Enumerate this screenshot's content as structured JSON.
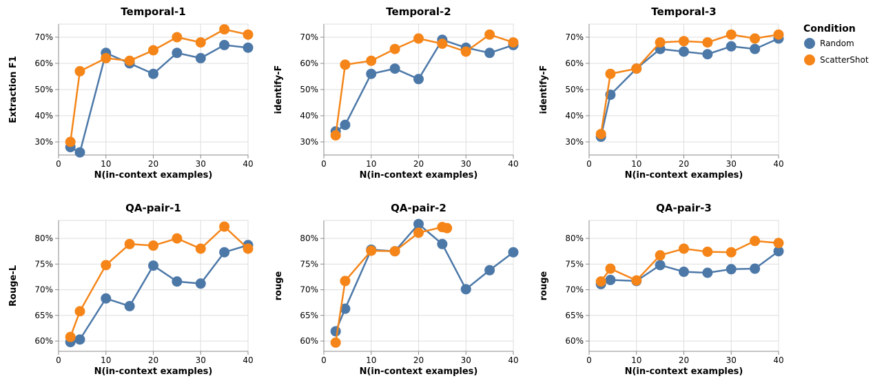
{
  "legend": {
    "title": "Condition",
    "items": [
      {
        "label": "Random",
        "color": "#4c78a8"
      },
      {
        "label": "ScatterShot",
        "color": "#f58518"
      }
    ]
  },
  "chart_data": [
    {
      "type": "line",
      "title": "Temporal-1",
      "xlabel": "N(in-context examples)",
      "ylabel": "Extraction F1",
      "xlim": [
        0,
        40
      ],
      "ylim": [
        0.25,
        0.75
      ],
      "xticks": [
        "0",
        "10",
        "20",
        "30",
        "40"
      ],
      "yticks": [
        "30%",
        "40%",
        "50%",
        "60%",
        "70%"
      ],
      "series": [
        {
          "name": "Random",
          "x": [
            2.5,
            4.5,
            10,
            15,
            20,
            25,
            30,
            35,
            40
          ],
          "y": [
            0.28,
            0.26,
            0.64,
            0.6,
            0.56,
            0.64,
            0.62,
            0.67,
            0.66
          ]
        },
        {
          "name": "ScatterShot",
          "x": [
            2.5,
            4.5,
            10,
            15,
            20,
            25,
            30,
            35,
            40
          ],
          "y": [
            0.3,
            0.57,
            0.62,
            0.61,
            0.65,
            0.7,
            0.68,
            0.73,
            0.71
          ]
        }
      ]
    },
    {
      "type": "line",
      "title": "Temporal-2",
      "xlabel": "N(in-context examples)",
      "ylabel": "identify-F",
      "xlim": [
        0,
        40
      ],
      "ylim": [
        0.25,
        0.75
      ],
      "xticks": [
        "0",
        "10",
        "20",
        "30",
        "40"
      ],
      "yticks": [
        "30%",
        "40%",
        "50%",
        "60%",
        "70%"
      ],
      "series": [
        {
          "name": "Random",
          "x": [
            2.5,
            4.5,
            10,
            15,
            20,
            25,
            30,
            35,
            40
          ],
          "y": [
            0.34,
            0.365,
            0.56,
            0.58,
            0.54,
            0.69,
            0.66,
            0.64,
            0.67
          ]
        },
        {
          "name": "ScatterShot",
          "x": [
            2.5,
            4.5,
            10,
            15,
            20,
            25,
            30,
            35,
            40
          ],
          "y": [
            0.325,
            0.595,
            0.61,
            0.655,
            0.695,
            0.675,
            0.645,
            0.71,
            0.68
          ]
        }
      ]
    },
    {
      "type": "line",
      "title": "Temporal-3",
      "xlabel": "N(in-context examples)",
      "ylabel": "identify-F",
      "xlim": [
        0,
        40
      ],
      "ylim": [
        0.25,
        0.75
      ],
      "xticks": [
        "0",
        "10",
        "20",
        "30",
        "40"
      ],
      "yticks": [
        "30%",
        "40%",
        "50%",
        "60%",
        "70%"
      ],
      "series": [
        {
          "name": "Random",
          "x": [
            2.5,
            4.5,
            10,
            15,
            20,
            25,
            30,
            35,
            40
          ],
          "y": [
            0.32,
            0.48,
            0.58,
            0.655,
            0.645,
            0.635,
            0.665,
            0.655,
            0.695
          ]
        },
        {
          "name": "ScatterShot",
          "x": [
            2.5,
            4.5,
            10,
            15,
            20,
            25,
            30,
            35,
            40
          ],
          "y": [
            0.33,
            0.56,
            0.58,
            0.68,
            0.685,
            0.68,
            0.71,
            0.695,
            0.71
          ]
        }
      ]
    },
    {
      "type": "line",
      "title": "QA-pair-1",
      "xlabel": "N(in-context examples)",
      "ylabel": "Rouge-L",
      "xlim": [
        0,
        40
      ],
      "ylim": [
        0.58,
        0.835
      ],
      "xticks": [
        "0",
        "10",
        "20",
        "30",
        "40"
      ],
      "yticks": [
        "60%",
        "65%",
        "70%",
        "75%",
        "80%"
      ],
      "series": [
        {
          "name": "Random",
          "x": [
            2.5,
            4.5,
            10,
            15,
            20,
            25,
            30,
            35,
            40
          ],
          "y": [
            0.598,
            0.603,
            0.683,
            0.668,
            0.747,
            0.716,
            0.712,
            0.773,
            0.787
          ]
        },
        {
          "name": "ScatterShot",
          "x": [
            2.5,
            4.5,
            10,
            15,
            20,
            25,
            30,
            35,
            40
          ],
          "y": [
            0.608,
            0.658,
            0.748,
            0.789,
            0.786,
            0.8,
            0.78,
            0.823,
            0.78
          ]
        }
      ]
    },
    {
      "type": "line",
      "title": "QA-pair-2",
      "xlabel": "N(in-context examples)",
      "ylabel": "rouge",
      "xlim": [
        0,
        40
      ],
      "ylim": [
        0.58,
        0.835
      ],
      "xticks": [
        "0",
        "10",
        "20",
        "30",
        "40"
      ],
      "yticks": [
        "60%",
        "65%",
        "70%",
        "75%",
        "80%"
      ],
      "series": [
        {
          "name": "Random",
          "x": [
            2.5,
            4.5,
            10,
            15,
            20,
            25,
            30,
            35,
            40
          ],
          "y": [
            0.619,
            0.663,
            0.778,
            0.775,
            0.828,
            0.789,
            0.701,
            0.738,
            0.773
          ]
        },
        {
          "name": "ScatterShot",
          "x": [
            2.5,
            4.5,
            10,
            15,
            20,
            25,
            26
          ],
          "y": [
            0.597,
            0.717,
            0.776,
            0.775,
            0.811,
            0.822,
            0.82
          ]
        }
      ]
    },
    {
      "type": "line",
      "title": "QA-pair-3",
      "xlabel": "N(in-context examples)",
      "ylabel": "rouge",
      "xlim": [
        0,
        40
      ],
      "ylim": [
        0.58,
        0.835
      ],
      "xticks": [
        "0",
        "10",
        "20",
        "30",
        "40"
      ],
      "yticks": [
        "60%",
        "65%",
        "70%",
        "75%",
        "80%"
      ],
      "series": [
        {
          "name": "Random",
          "x": [
            2.5,
            4.5,
            10,
            15,
            20,
            25,
            30,
            35,
            40
          ],
          "y": [
            0.711,
            0.719,
            0.717,
            0.748,
            0.735,
            0.733,
            0.74,
            0.741,
            0.775
          ]
        },
        {
          "name": "ScatterShot",
          "x": [
            2.5,
            4.5,
            10,
            15,
            20,
            25,
            30,
            35,
            40
          ],
          "y": [
            0.716,
            0.741,
            0.718,
            0.767,
            0.78,
            0.774,
            0.773,
            0.795,
            0.791
          ]
        }
      ]
    }
  ]
}
